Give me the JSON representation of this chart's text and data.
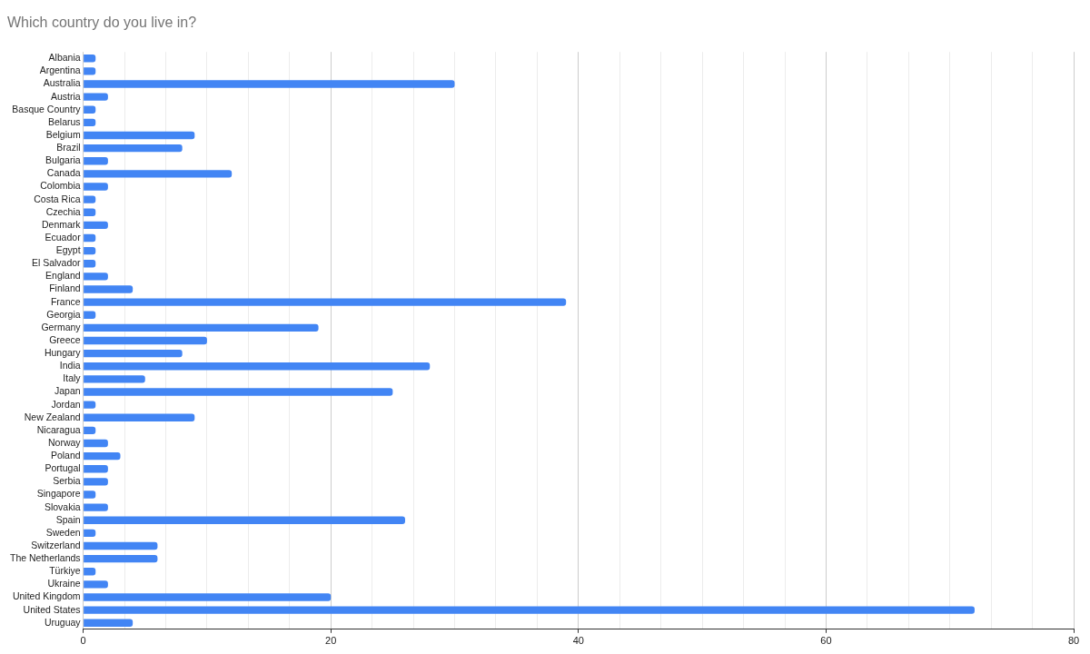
{
  "chart_data": {
    "type": "bar",
    "orientation": "horizontal",
    "title": "Which country do you live in?",
    "categories": [
      "Albania",
      "Argentina",
      "Australia",
      "Austria",
      "Basque Country",
      "Belarus",
      "Belgium",
      "Brazil",
      "Bulgaria",
      "Canada",
      "Colombia",
      "Costa Rica",
      "Czechia",
      "Denmark",
      "Ecuador",
      "Egypt",
      "El Salvador",
      "England",
      "Finland",
      "France",
      "Georgia",
      "Germany",
      "Greece",
      "Hungary",
      "India",
      "Italy",
      "Japan",
      "Jordan",
      "New Zealand",
      "Nicaragua",
      "Norway",
      "Poland",
      "Portugal",
      "Serbia",
      "Singapore",
      "Slovakia",
      "Spain",
      "Sweden",
      "Switzerland",
      "The Netherlands",
      "Türkiye",
      "Ukraine",
      "United Kingdom",
      "United States",
      "Uruguay"
    ],
    "values": [
      1,
      1,
      30,
      2,
      1,
      1,
      9,
      8,
      2,
      12,
      2,
      1,
      1,
      2,
      1,
      1,
      1,
      2,
      4,
      39,
      1,
      19,
      10,
      8,
      28,
      5,
      25,
      1,
      9,
      1,
      2,
      3,
      2,
      2,
      1,
      2,
      26,
      1,
      6,
      6,
      1,
      2,
      20,
      72,
      4
    ],
    "color": "#4285f4",
    "xlim": [
      0,
      80
    ],
    "xticks": [
      0,
      {
        "value": 3.33,
        "label": null
      },
      {
        "value": 6.67,
        "label": null
      },
      {
        "value": 10,
        "label": null
      },
      {
        "value": 13.33,
        "label": null
      },
      {
        "value": 16.67,
        "label": null
      },
      20,
      {
        "value": 23.33,
        "label": null
      },
      {
        "value": 26.67,
        "label": null
      },
      {
        "value": 30,
        "label": null
      },
      {
        "value": 33.33,
        "label": null
      },
      {
        "value": 36.67,
        "label": null
      },
      40,
      {
        "value": 43.33,
        "label": null
      },
      {
        "value": 46.67,
        "label": null
      },
      {
        "value": 50,
        "label": null
      },
      {
        "value": 53.33,
        "label": null
      },
      {
        "value": 56.67,
        "label": null
      },
      60,
      {
        "value": 63.33,
        "label": null
      },
      {
        "value": 66.67,
        "label": null
      },
      {
        "value": 70,
        "label": null
      },
      {
        "value": 73.33,
        "label": null
      },
      {
        "value": 76.67,
        "label": null
      },
      80
    ],
    "grid": "x",
    "legend": false
  }
}
